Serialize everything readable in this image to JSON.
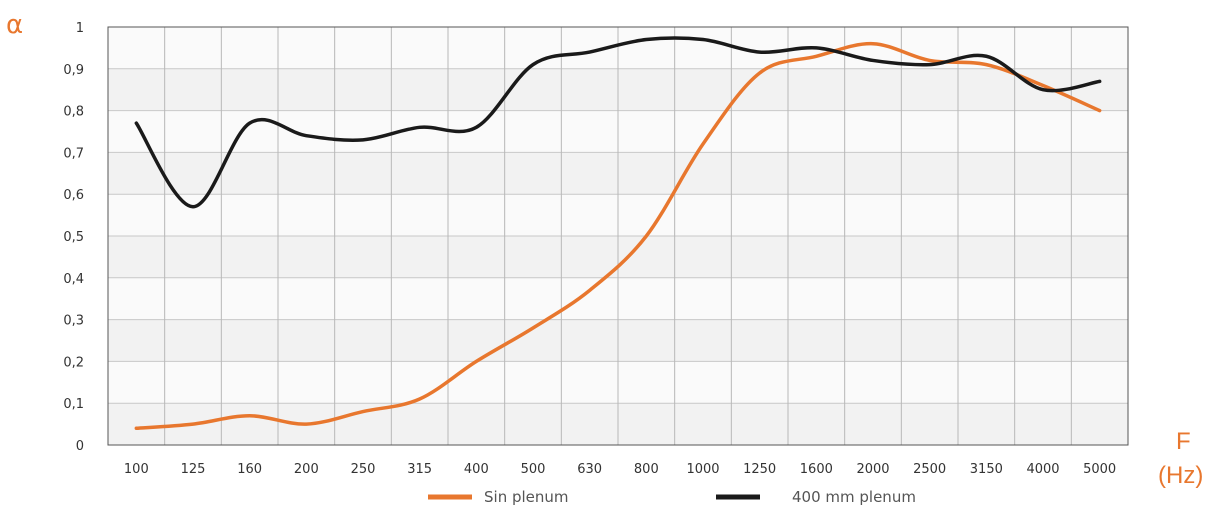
{
  "chart_data": {
    "type": "line",
    "title": "",
    "ylabel": "α",
    "xlabel_line1": "F",
    "xlabel_line2": "(Hz)",
    "ylim": [
      0,
      1
    ],
    "grid": true,
    "legend_position": "bottom",
    "yticks": [
      0,
      0.1,
      0.2,
      0.3,
      0.4,
      0.5,
      0.6,
      0.7,
      0.8,
      0.9,
      1
    ],
    "ytick_labels": [
      "0",
      "0,1",
      "0,2",
      "0,3",
      "0,4",
      "0,5",
      "0,6",
      "0,7",
      "0,8",
      "0,9",
      "1"
    ],
    "categories": [
      "100",
      "125",
      "160",
      "200",
      "250",
      "315",
      "400",
      "500",
      "630",
      "800",
      "1000",
      "1250",
      "1600",
      "2000",
      "2500",
      "3150",
      "4000",
      "5000"
    ],
    "series": [
      {
        "name": "Sin plenum",
        "color": "#e8772e",
        "values": [
          0.04,
          0.05,
          0.07,
          0.05,
          0.08,
          0.11,
          0.2,
          0.28,
          0.37,
          0.5,
          0.72,
          0.89,
          0.93,
          0.96,
          0.92,
          0.91,
          0.86,
          0.8
        ]
      },
      {
        "name": "400 mm plenum",
        "color": "#1a1a1a",
        "values": [
          0.77,
          0.57,
          0.77,
          0.74,
          0.73,
          0.76,
          0.76,
          0.91,
          0.94,
          0.97,
          0.97,
          0.94,
          0.95,
          0.92,
          0.91,
          0.93,
          0.85,
          0.87
        ]
      }
    ]
  }
}
